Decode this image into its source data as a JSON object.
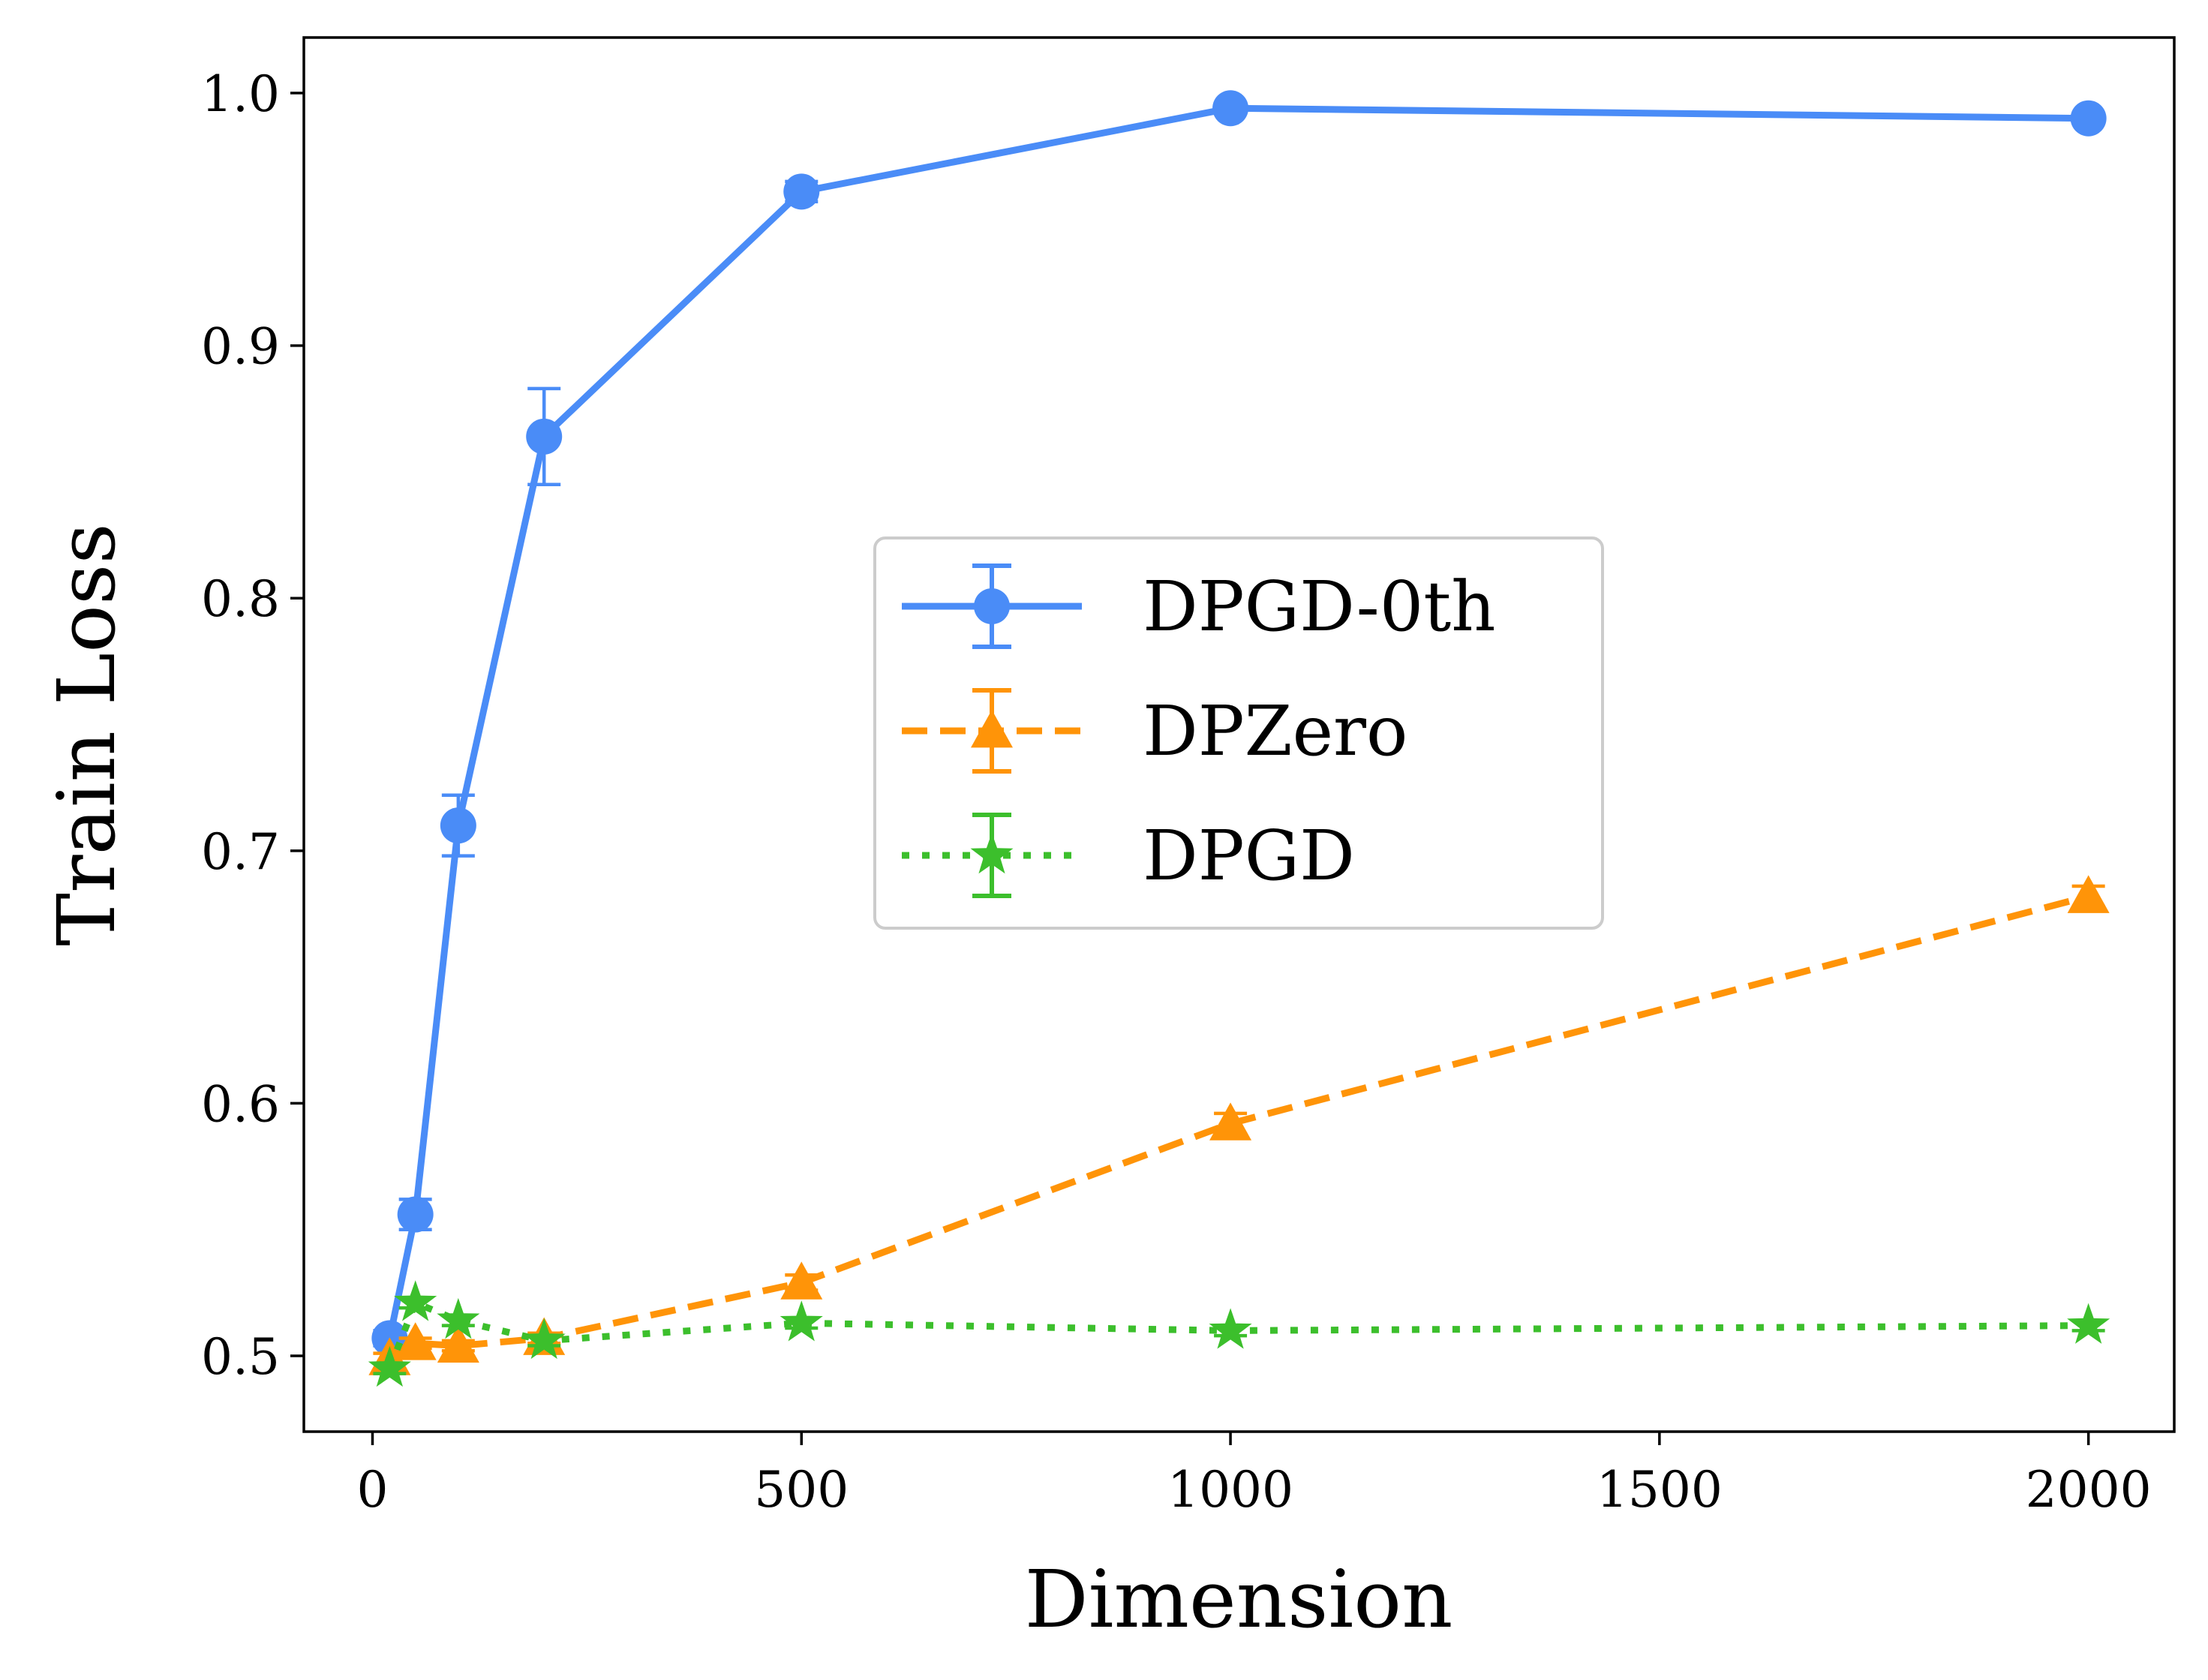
{
  "chart_data": {
    "type": "line",
    "title": "",
    "xlabel": "Dimension",
    "ylabel": "Train Loss",
    "xlim": [
      -80,
      2100
    ],
    "ylim": [
      0.47,
      1.022
    ],
    "xticks": [
      0,
      500,
      1000,
      1500,
      2000
    ],
    "xtick_labels": [
      "0",
      "500",
      "1000",
      "1500",
      "2000"
    ],
    "yticks": [
      0.5,
      0.6,
      0.7,
      0.8,
      0.9,
      1.0
    ],
    "ytick_labels": [
      "0.5",
      "0.6",
      "0.7",
      "0.8",
      "0.9",
      "1.0"
    ],
    "grid": false,
    "legend_position": "center",
    "series": [
      {
        "name": "DPGD-0th",
        "color": "#4a8cf7",
        "linestyle": "solid",
        "marker": "circle",
        "x": [
          20,
          50,
          100,
          200,
          500,
          1000,
          2000
        ],
        "y": [
          0.507,
          0.556,
          0.71,
          0.864,
          0.961,
          0.994,
          0.99
        ],
        "err": [
          0.003,
          0.006,
          0.012,
          0.019,
          0.004,
          0.002,
          0.002
        ]
      },
      {
        "name": "DPZero",
        "color": "#ff9408",
        "linestyle": "dashed",
        "marker": "triangle",
        "x": [
          20,
          50,
          100,
          200,
          500,
          1000,
          2000
        ],
        "y": [
          0.499,
          0.505,
          0.504,
          0.507,
          0.529,
          0.592,
          0.682
        ],
        "err": [
          0.002,
          0.002,
          0.002,
          0.002,
          0.003,
          0.004,
          0.004
        ]
      },
      {
        "name": "DPGD",
        "color": "#3cbf2c",
        "linestyle": "dotted",
        "marker": "star",
        "x": [
          20,
          50,
          100,
          200,
          500,
          1000,
          2000
        ],
        "y": [
          0.495,
          0.521,
          0.514,
          0.506,
          0.513,
          0.51,
          0.512
        ],
        "err": [
          0.002,
          0.002,
          0.002,
          0.002,
          0.002,
          0.002,
          0.002
        ]
      }
    ]
  }
}
